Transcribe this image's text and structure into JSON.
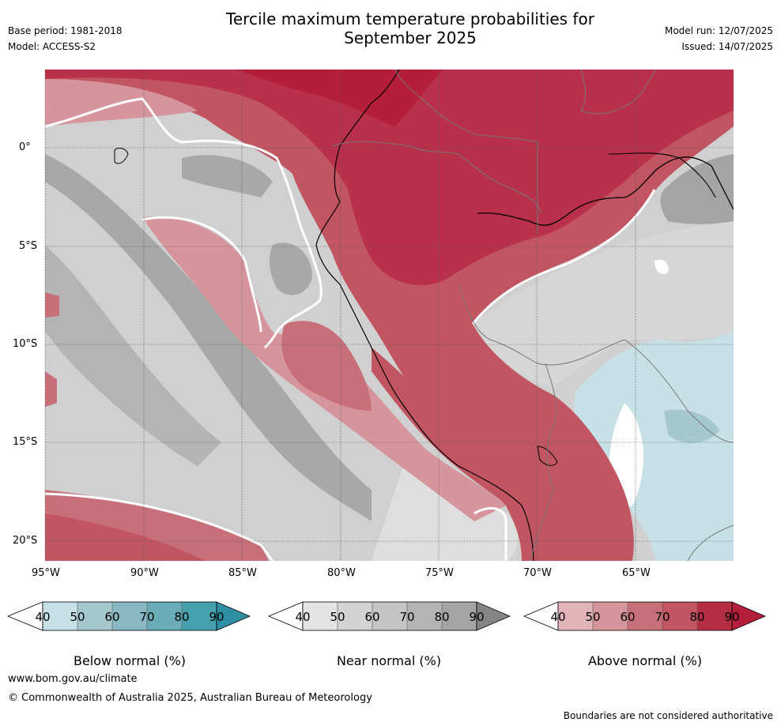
{
  "header": {
    "title_line1": "Tercile maximum temperature probabilities for",
    "title_line2": "September 2025",
    "base_period": "Base period: 1981-2018",
    "model": "Model: ACCESS-S2",
    "model_run": "Model run: 12/07/2025",
    "issued": "Issued: 14/07/2025"
  },
  "map": {
    "lat_labels": [
      "0°",
      "5°S",
      "10°S",
      "15°S",
      "20°S"
    ],
    "lon_labels": [
      "95°W",
      "90°W",
      "85°W",
      "80°W",
      "75°W",
      "70°W",
      "65°W"
    ]
  },
  "colorbars": [
    {
      "label": "Below normal (%)",
      "ticks": [
        "40",
        "50",
        "60",
        "70",
        "80",
        "90"
      ],
      "colors": [
        "#c7e0e6",
        "#a5c8cd",
        "#88b9c3",
        "#6aadb8",
        "#47a0ae",
        "#2f8ea3"
      ]
    },
    {
      "label": "Near normal (%)",
      "ticks": [
        "40",
        "50",
        "60",
        "70",
        "80",
        "90"
      ],
      "colors": [
        "#e3e3e3",
        "#d3d3d3",
        "#c4c4c4",
        "#b4b4b4",
        "#a4a4a4",
        "#858585"
      ]
    },
    {
      "label": "Above normal (%)",
      "ticks": [
        "40",
        "50",
        "60",
        "70",
        "80",
        "90"
      ],
      "colors": [
        "#e1b4b9",
        "#d6959c",
        "#c87079",
        "#c15562",
        "#b42d43",
        "#b51e3a"
      ]
    }
  ],
  "footer": {
    "website": "www.bom.gov.au/climate",
    "copyright": "© Commonwealth of Australia 2025, Australian Bureau of Meteorology",
    "disclaimer": "Boundaries are not considered authoritative"
  }
}
